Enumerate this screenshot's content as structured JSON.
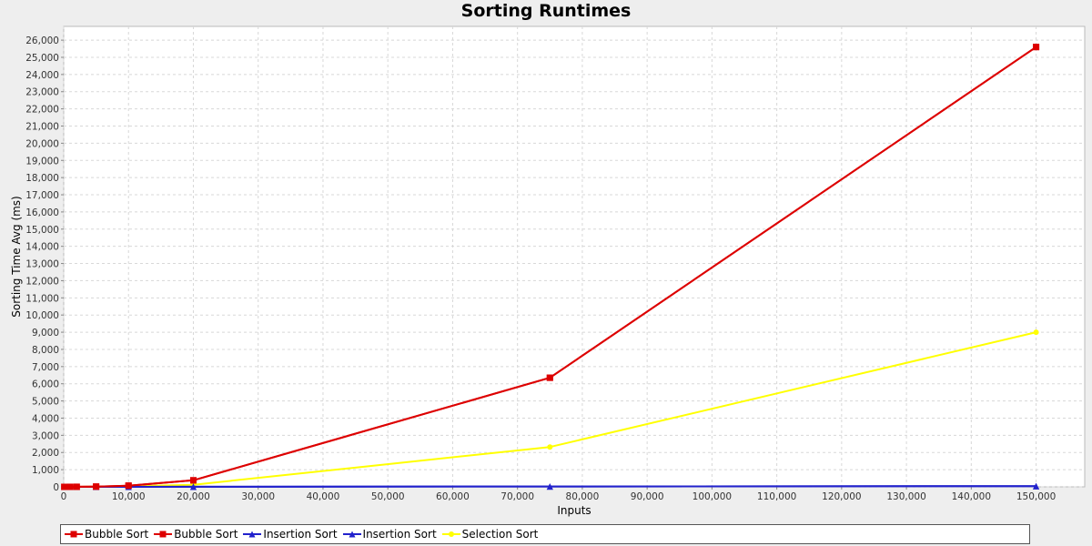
{
  "chart_data": {
    "type": "line",
    "title": "Sorting Runtimes",
    "xlabel": "Inputs",
    "ylabel": "Sorting Time Avg (ms)",
    "xlim": [
      0,
      157500
    ],
    "ylim": [
      0,
      26800
    ],
    "x_ticks": [
      "0",
      "10,000",
      "20,000",
      "30,000",
      "40,000",
      "50,000",
      "60,000",
      "70,000",
      "80,000",
      "90,000",
      "100,000",
      "110,000",
      "120,000",
      "130,000",
      "140,000",
      "150,000"
    ],
    "y_ticks": [
      "0",
      "1,000",
      "2,000",
      "3,000",
      "4,000",
      "5,000",
      "6,000",
      "7,000",
      "8,000",
      "9,000",
      "10,000",
      "11,000",
      "12,000",
      "13,000",
      "14,000",
      "15,000",
      "16,000",
      "17,000",
      "18,000",
      "19,000",
      "20,000",
      "21,000",
      "22,000",
      "23,000",
      "24,000",
      "25,000",
      "26,000"
    ],
    "grid": true,
    "legend_position": "bottom",
    "series": [
      {
        "name": "Bubble Sort",
        "color": "#dd0000",
        "marker": "square",
        "x": [
          100,
          1000,
          2000,
          5000,
          10000,
          20000,
          75000,
          150000
        ],
        "y": [
          0,
          1,
          3,
          15,
          70,
          380,
          6350,
          25600
        ]
      },
      {
        "name": "Bubble Sort",
        "color": "#dd0000",
        "marker": "square",
        "x": [
          100,
          1000,
          2000,
          5000,
          10000,
          20000,
          75000,
          150000
        ],
        "y": [
          0,
          1,
          3,
          15,
          70,
          380,
          6350,
          25600
        ]
      },
      {
        "name": "Insertion Sort",
        "color": "#2222cc",
        "marker": "triangle",
        "x": [
          100,
          1000,
          2000,
          5000,
          10000,
          20000,
          75000,
          150000
        ],
        "y": [
          0,
          0,
          0,
          1,
          2,
          5,
          20,
          40
        ]
      },
      {
        "name": "Insertion Sort",
        "color": "#2222cc",
        "marker": "triangle",
        "x": [
          100,
          1000,
          2000,
          5000,
          10000,
          20000,
          75000,
          150000
        ],
        "y": [
          0,
          0,
          0,
          1,
          2,
          5,
          20,
          40
        ]
      },
      {
        "name": "Selection Sort",
        "color": "#ffff00",
        "marker": "circle",
        "x": [
          100,
          1000,
          2000,
          5000,
          10000,
          20000,
          75000,
          150000
        ],
        "y": [
          0,
          1,
          2,
          8,
          30,
          120,
          2320,
          9000
        ]
      }
    ]
  }
}
